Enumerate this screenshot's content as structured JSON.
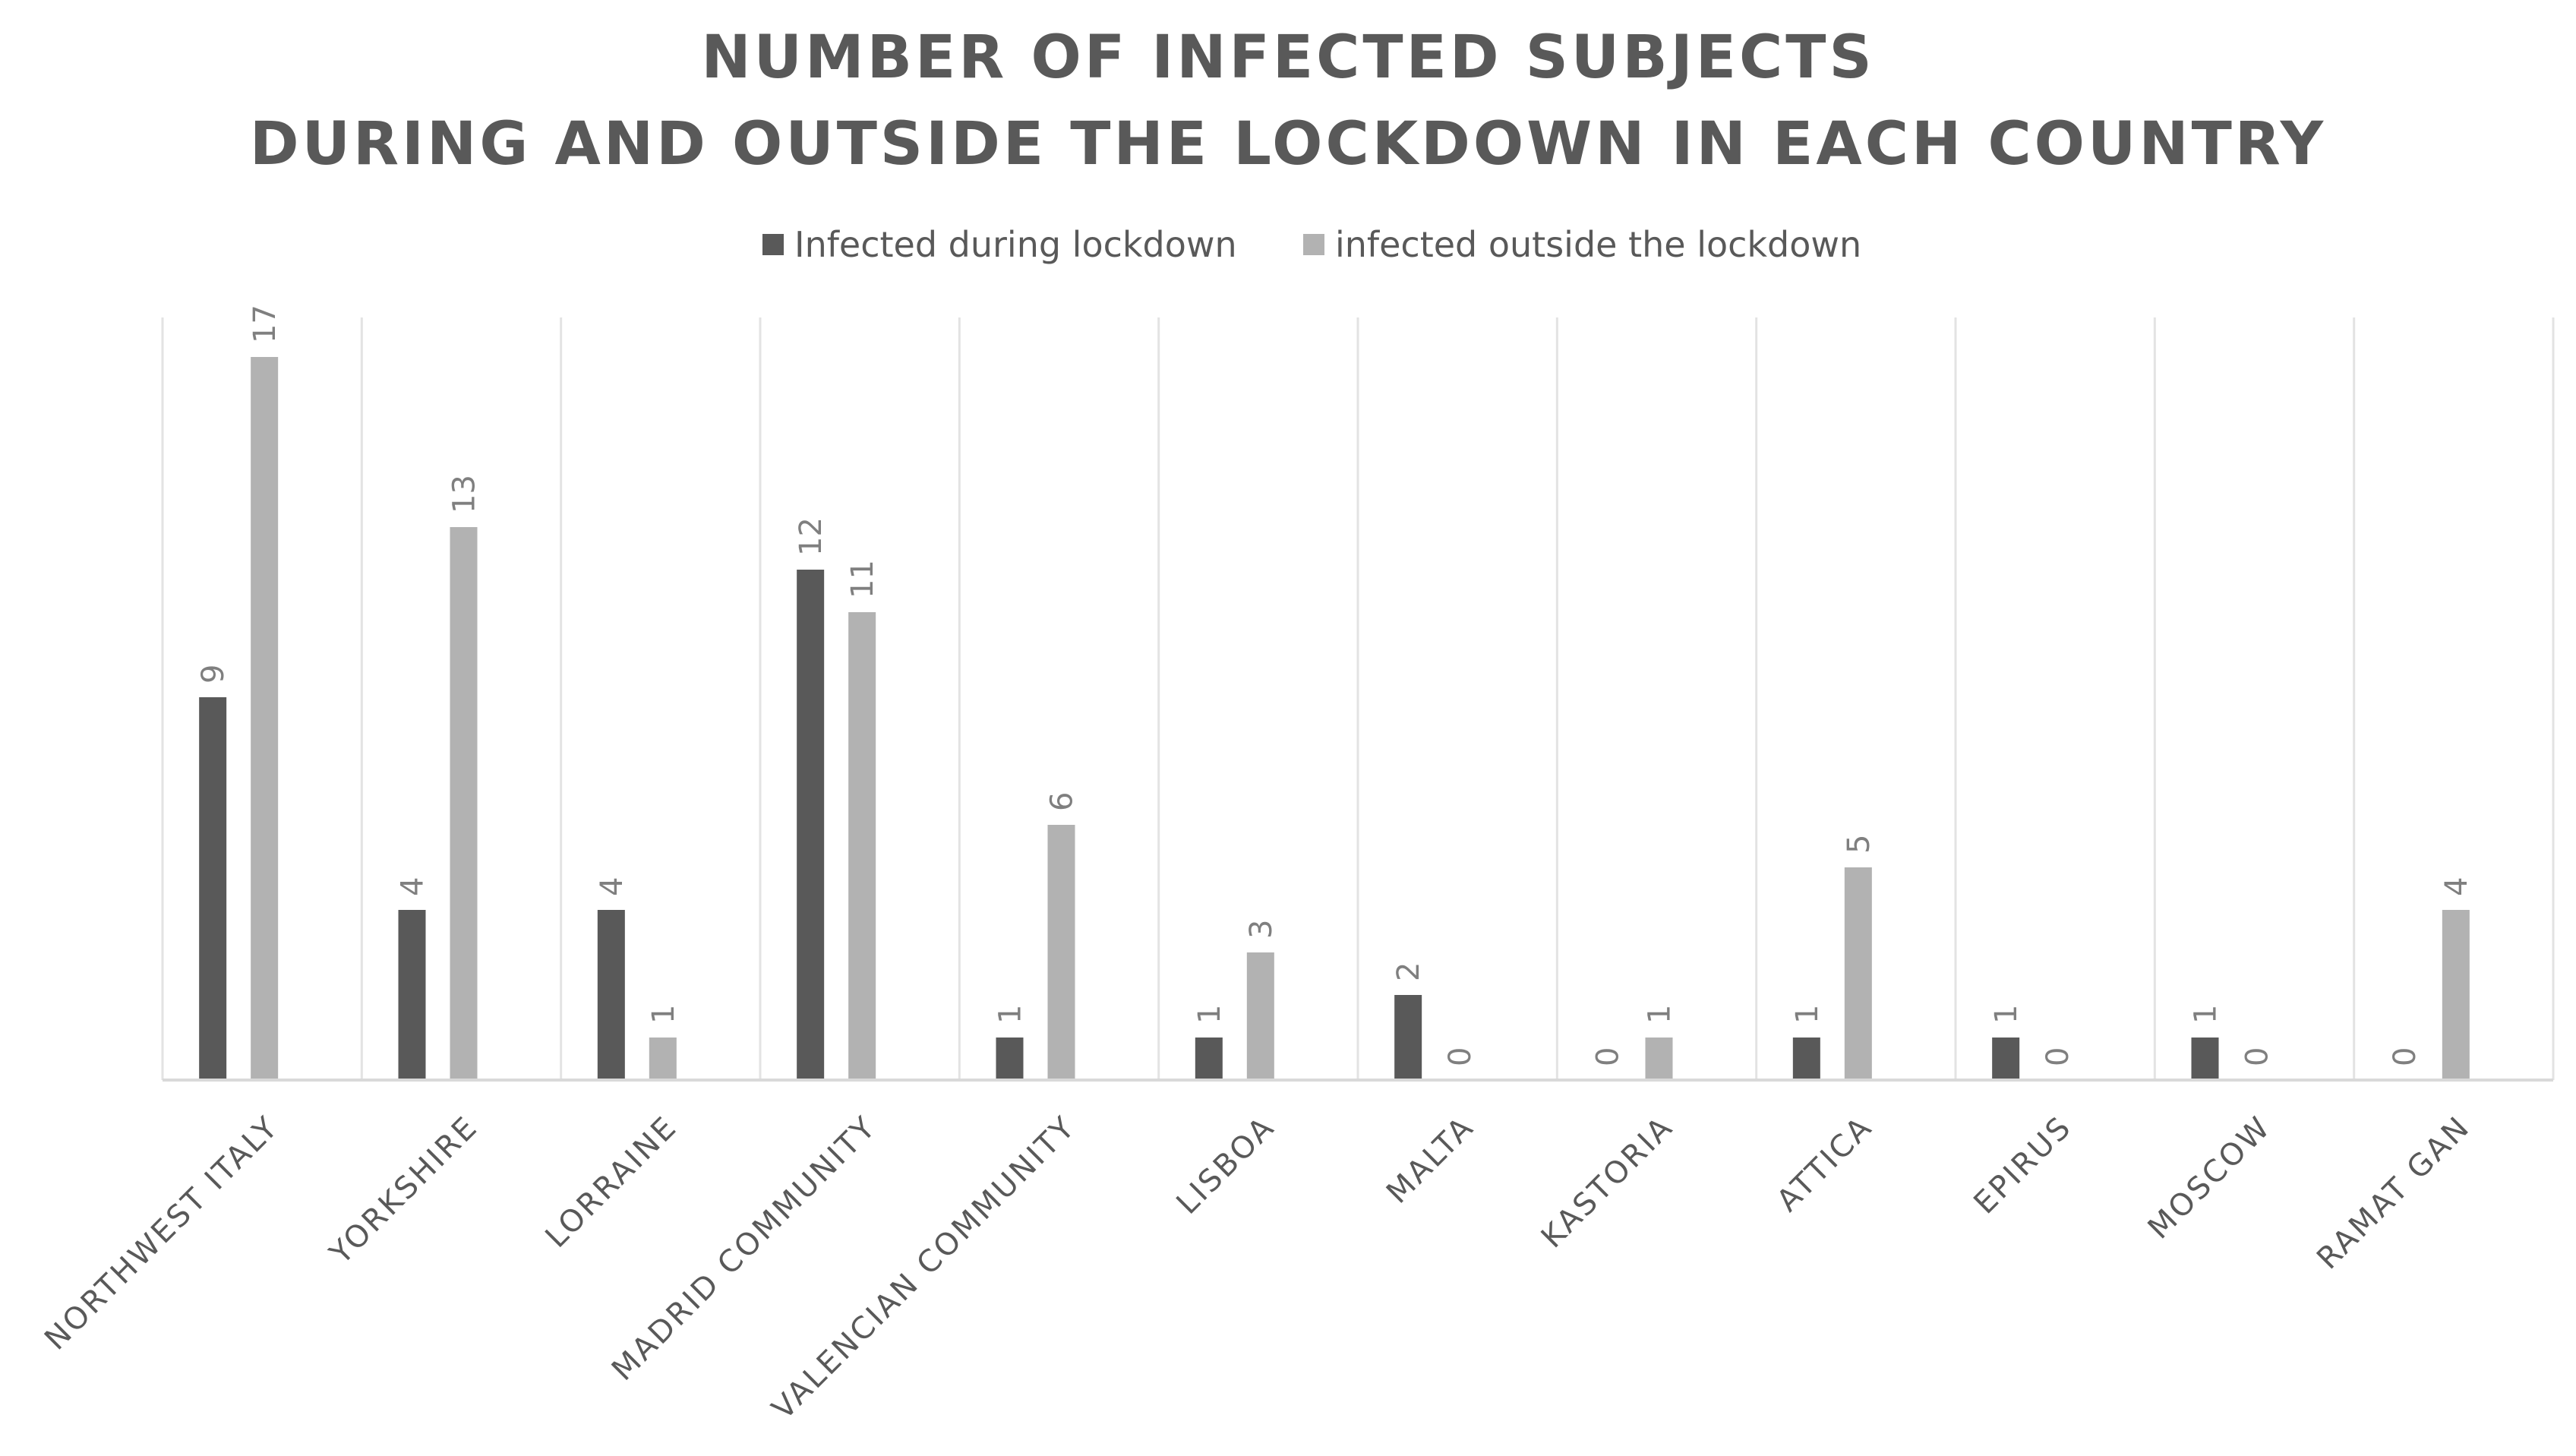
{
  "chart_data": {
    "type": "bar",
    "title": [
      "NUMBER OF INFECTED SUBJECTS",
      "DURING AND OUTSIDE THE LOCKDOWN IN EACH COUNTRY"
    ],
    "xlabel": "",
    "ylabel": "",
    "ylim": [
      0,
      18
    ],
    "grid": "vertical category separators",
    "legend_position": "top",
    "categories": [
      "NORTHWEST ITALY",
      "YORKSHIRE",
      "LORRAINE",
      "MADRID COMMUNITY",
      "VALENCIAN COMMUNITY",
      "LISBOA",
      "MALTA",
      "KASTORIA",
      "ATTICA",
      "EPIRUS",
      "MOSCOW",
      "RAMAT GAN"
    ],
    "series": [
      {
        "name": "Infected during lockdown",
        "color": "#595959",
        "values": [
          9,
          4,
          4,
          12,
          1,
          1,
          2,
          0,
          1,
          1,
          1,
          0
        ]
      },
      {
        "name": "infected outside the lockdown",
        "color": "#b2b2b2",
        "values": [
          17,
          13,
          1,
          11,
          6,
          3,
          0,
          1,
          5,
          0,
          0,
          4
        ]
      }
    ]
  }
}
